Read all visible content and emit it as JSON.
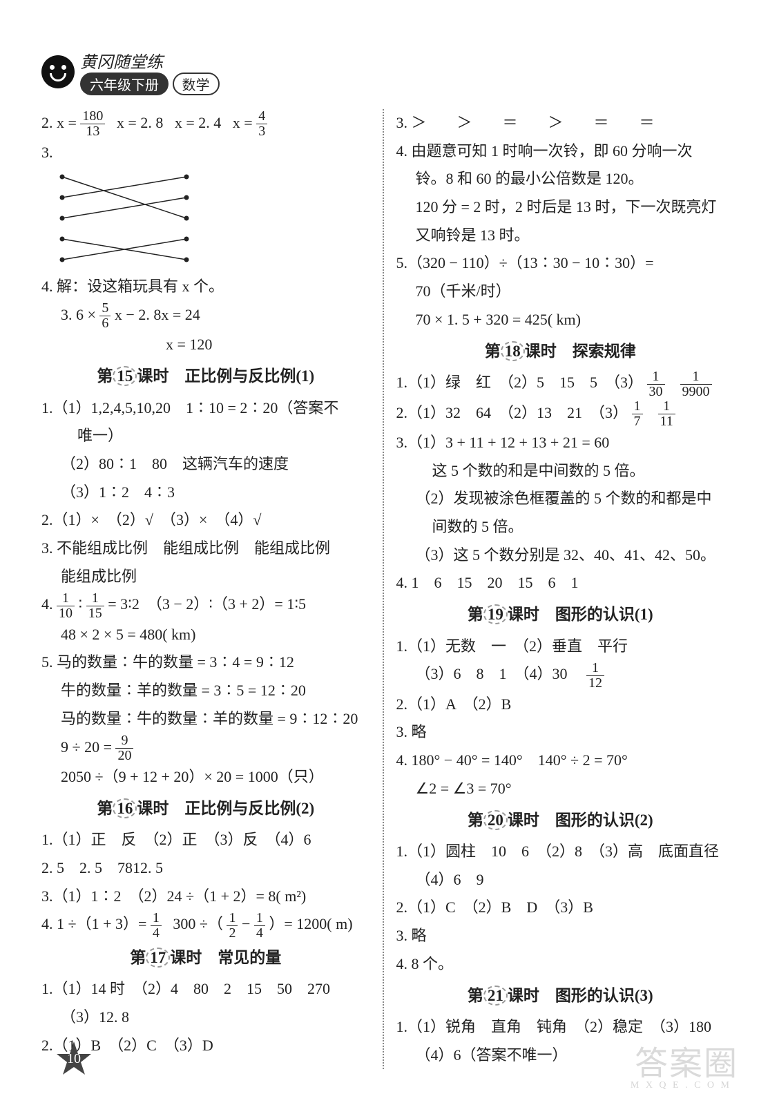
{
  "header": {
    "brand": "黄冈随堂练",
    "grade": "六年级下册",
    "subject": "数学"
  },
  "left": {
    "q2": {
      "prefix": "2.",
      "p1a": "x =",
      "p1n": "180",
      "p1d": "13",
      "p2": "x = 2. 8",
      "p3": "x = 2. 4",
      "p4a": "x =",
      "p4n": "4",
      "p4d": "3"
    },
    "q3_label": "3.",
    "q4": {
      "line1": "4. 解：设这箱玩具有 x 个。",
      "eq1a": "3. 6 ×",
      "eq1n": "5",
      "eq1d": "6",
      "eq1b": "x − 2. 8x = 24",
      "eq2": "x = 120"
    },
    "s15_title_a": "第",
    "s15_num": "15",
    "s15_title_b": "课时　正比例与反比例(1)",
    "s15_q1_1": "1.（1）1,2,4,5,10,20　1∶10 = 2∶20（答案不",
    "s15_q1_1b": "唯一）",
    "s15_q1_2": "（2）80∶1　80　这辆汽车的速度",
    "s15_q1_3": "（3）1∶2　4∶3",
    "s15_q2": "2.（1）×　（2）√　（3）×　（4）√",
    "s15_q3a": "3. 不能组成比例　能组成比例　能组成比例",
    "s15_q3b": "能组成比例",
    "s15_q4_a": "4.",
    "s15_q4_f1n": "1",
    "s15_q4_f1d": "10",
    "s15_q4_mid": "∶",
    "s15_q4_f2n": "1",
    "s15_q4_f2d": "15",
    "s15_q4_b": "= 3∶2　（3 − 2）∶（3 + 2）= 1∶5",
    "s15_q4_c": "48 × 2 × 5 = 480( km)",
    "s15_q5_1": "5. 马的数量∶牛的数量 = 3∶4 = 9∶12",
    "s15_q5_2": "牛的数量∶羊的数量 = 3∶5 = 12∶20",
    "s15_q5_3": "马的数量∶牛的数量∶羊的数量 = 9∶12∶20",
    "s15_q5_4a": "9 ÷ 20 =",
    "s15_q5_4n": "9",
    "s15_q5_4d": "20",
    "s15_q5_5": "2050 ÷（9 + 12 + 20）× 20 = 1000（只）",
    "s16_title_a": "第",
    "s16_num": "16",
    "s16_title_b": "课时　正比例与反比例(2)",
    "s16_q1": "1.（1）正　反　（2）正　（3）反　（4）6",
    "s16_q2": "2. 5　2. 5　7812. 5",
    "s16_q3": "3.（1）1∶2　（2）24 ÷（1 + 2）= 8( m²)",
    "s16_q4_a": "4. 1 ÷（1 + 3）=",
    "s16_q4_f1n": "1",
    "s16_q4_f1d": "4",
    "s16_q4_b": "300 ÷（",
    "s16_q4_f2n": "1",
    "s16_q4_f2d": "2",
    "s16_q4_c": "−",
    "s16_q4_f3n": "1",
    "s16_q4_f3d": "4",
    "s16_q4_d": "）= 1200( m)",
    "s17_title_a": "第",
    "s17_num": "17",
    "s17_title_b": "课时　常见的量",
    "s17_q1_1": "1.（1）14 时　（2）4　80　2　15　50　270",
    "s17_q1_2": "（3）12. 8",
    "s17_q2": "2.（1）B　（2）C　（3）D"
  },
  "right": {
    "q3": "3. ＞　　＞　　＝　　＞　　＝　　＝",
    "q4_1": "4. 由题意可知 1 时响一次铃，即 60 分响一次",
    "q4_2": "铃。8 和 60 的最小公倍数是 120。",
    "q4_3": "120 分 = 2 时，2 时后是 13 时，下一次既亮灯",
    "q4_4": "又响铃是 13 时。",
    "q5_1": "5.（320 − 110）÷（13∶30 − 10∶30）=",
    "q5_2": "70（千米/时）",
    "q5_3": "70 × 1. 5 + 320 = 425( km)",
    "s18_title_a": "第",
    "s18_num": "18",
    "s18_title_b": "课时　探索规律",
    "s18_q1_a": "1.（1）绿　红　（2）5　15　5　（3）",
    "s18_q1_f1n": "1",
    "s18_q1_f1d": "30",
    "s18_q1_f2n": "1",
    "s18_q1_f2d": "9900",
    "s18_q2_a": "2.（1）32　64　（2）13　21　（3）",
    "s18_q2_f1n": "1",
    "s18_q2_f1d": "7",
    "s18_q2_f2n": "1",
    "s18_q2_f2d": "11",
    "s18_q3_1": "3.（1）3 + 11 + 12 + 13 + 21 = 60",
    "s18_q3_2": "这 5 个数的和是中间数的 5 倍。",
    "s18_q3_3": "（2）发现被涂色框覆盖的 5 个数的和都是中",
    "s18_q3_4": "间数的 5 倍。",
    "s18_q3_5": "（3）这 5 个数分别是 32、40、41、42、50。",
    "s18_q4": "4. 1　6　15　20　15　6　1",
    "s19_title_a": "第",
    "s19_num": "19",
    "s19_title_b": "课时　图形的认识(1)",
    "s19_q1_1": "1.（1）无数　一　（2）垂直　平行",
    "s19_q1_2a": "（3）6　8　1　（4）30　",
    "s19_q1_2n": "1",
    "s19_q1_2d": "12",
    "s19_q2": "2.（1）A　（2）B",
    "s19_q3": "3. 略",
    "s19_q4_1": "4. 180° − 40° = 140°　140° ÷ 2 = 70°",
    "s19_q4_2": "∠2 = ∠3 = 70°",
    "s20_title_a": "第",
    "s20_num": "20",
    "s20_title_b": "课时　图形的认识(2)",
    "s20_q1_1": "1.（1）圆柱　10　6　（2）8　（3）高　底面直径",
    "s20_q1_2": "（4）6　9",
    "s20_q2": "2.（1）C　（2）B　D　（3）B",
    "s20_q3": "3. 略",
    "s20_q4": "4. 8 个。",
    "s21_title_a": "第",
    "s21_num": "21",
    "s21_title_b": "课时　图形的认识(3)",
    "s21_q1_1": "1.（1）锐角　直角　钝角　（2）稳定　（3）180",
    "s21_q1_2": "（4）6（答案不唯一）"
  },
  "page_number": "10",
  "watermark": "答案圈",
  "watermark_sub": "M X Q E . C O M",
  "matching": {
    "left_y": [
      10,
      40,
      70,
      100,
      130
    ],
    "right_y": [
      10,
      40,
      70,
      100,
      130
    ],
    "edges": [
      [
        0,
        2
      ],
      [
        1,
        0
      ],
      [
        2,
        1
      ],
      [
        3,
        4
      ],
      [
        4,
        3
      ]
    ]
  }
}
